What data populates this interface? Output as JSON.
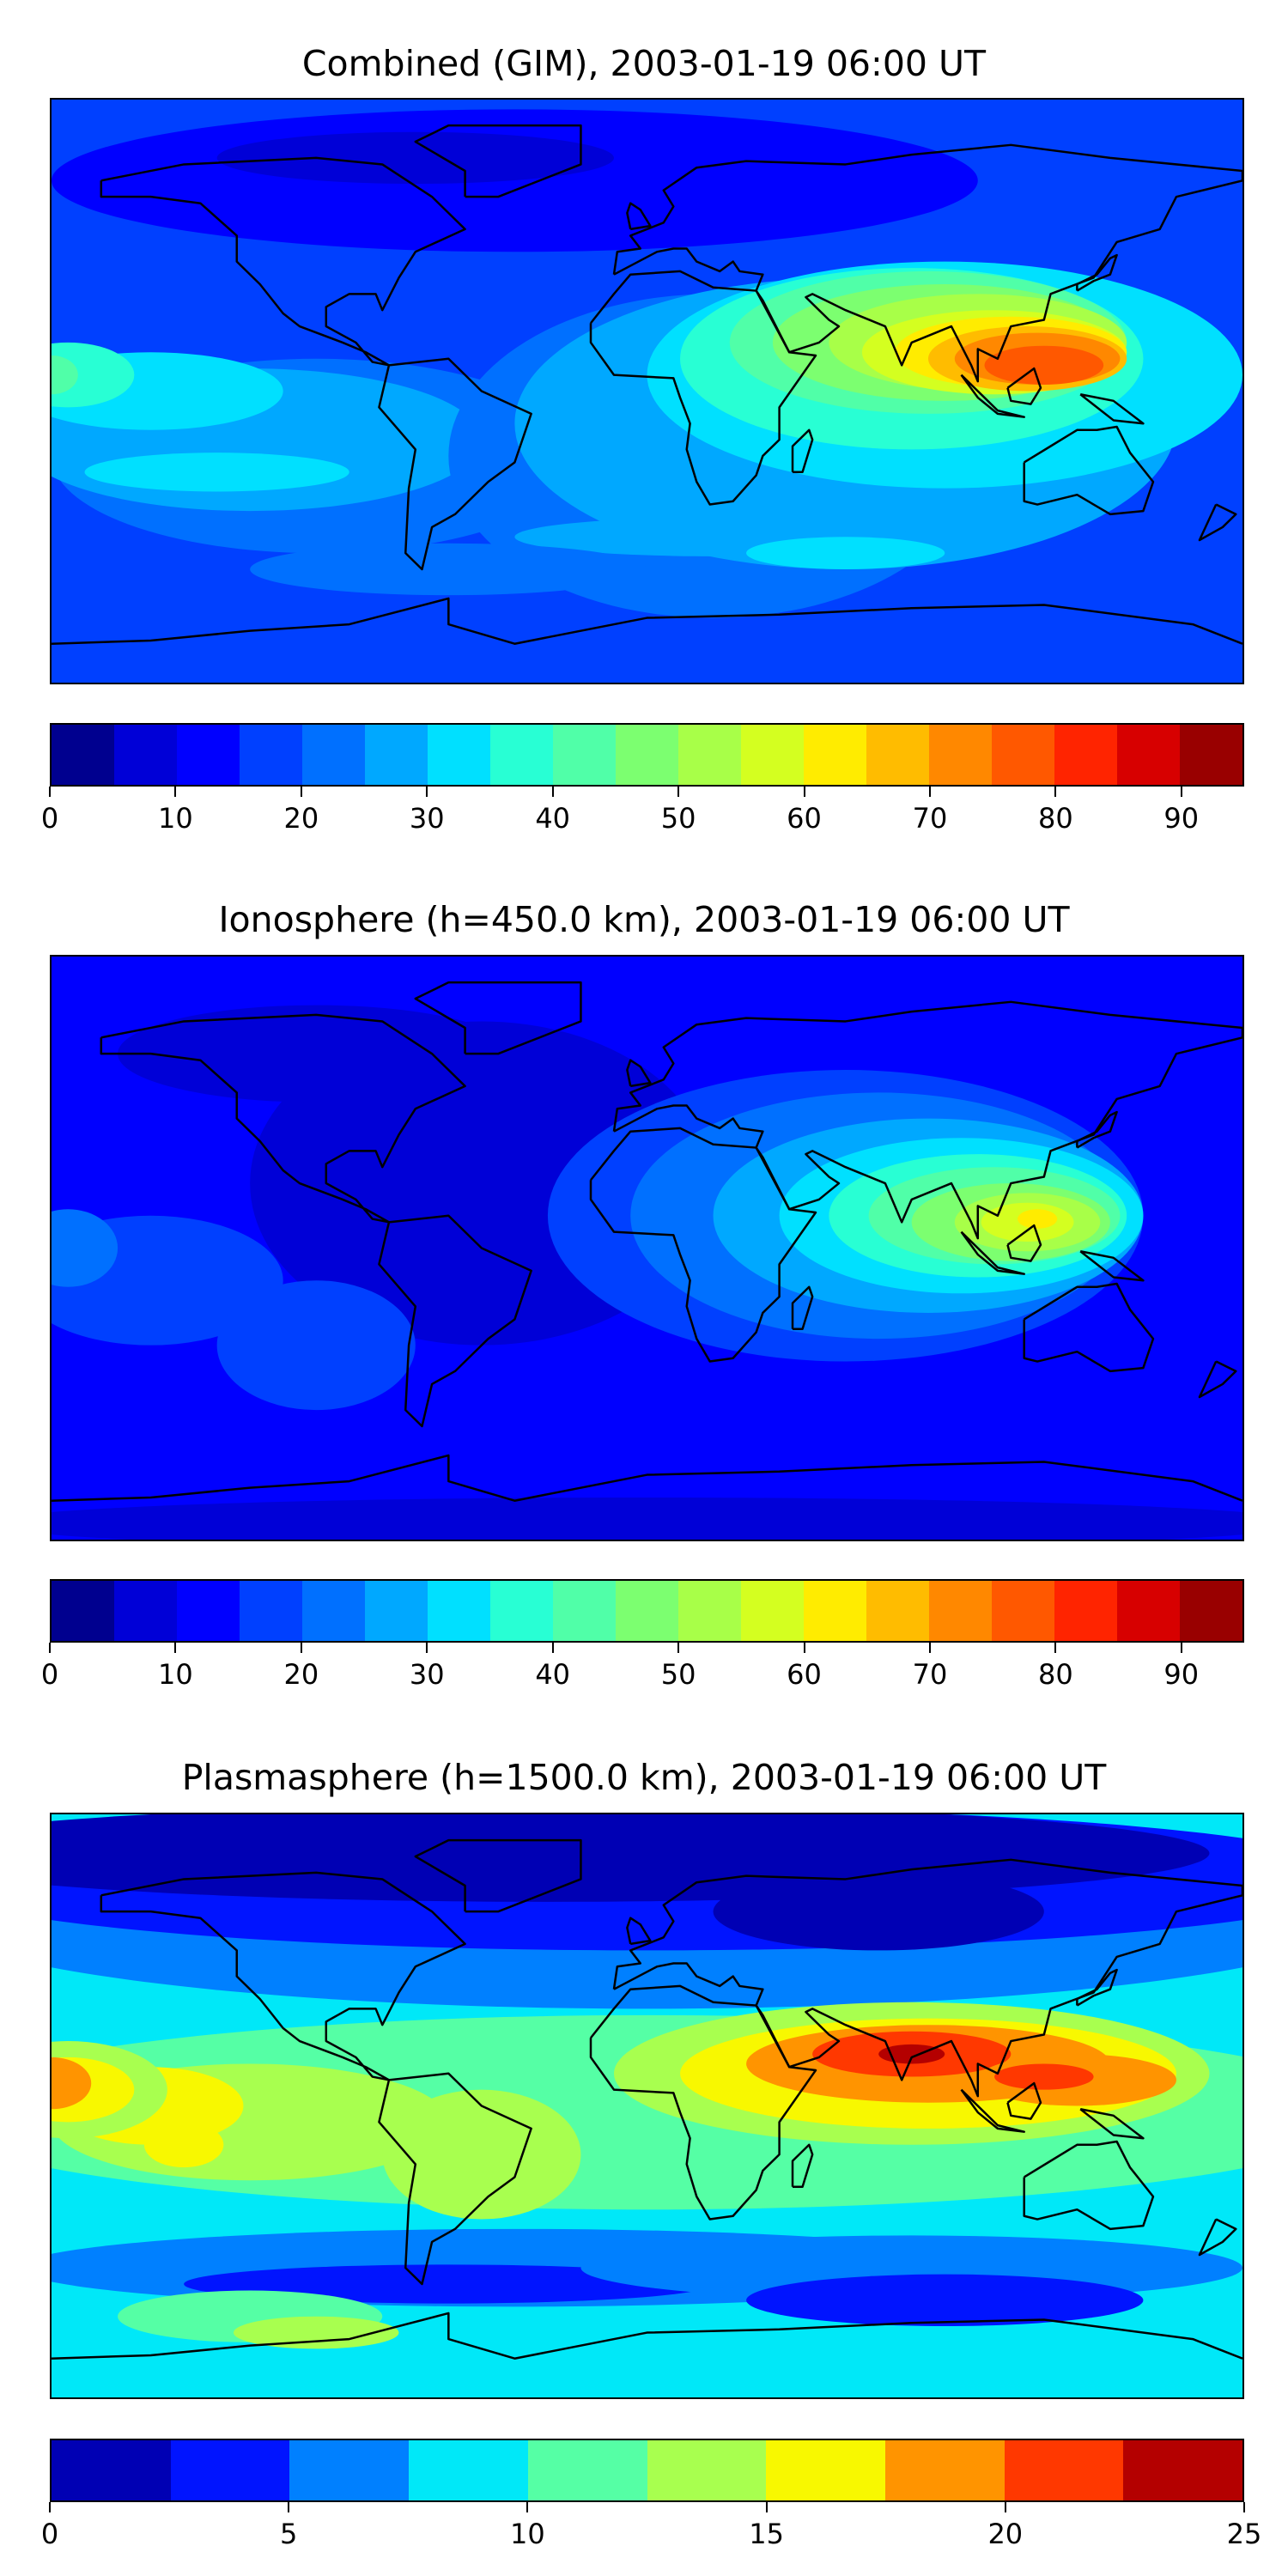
{
  "chart_data": [
    {
      "type": "heatmap",
      "title": "Combined (GIM), 2003-01-19 06:00 UT",
      "xlim": [
        -180,
        180
      ],
      "ylim": [
        -90,
        90
      ],
      "colorbar": {
        "levels": [
          0,
          5,
          10,
          15,
          20,
          25,
          30,
          35,
          40,
          45,
          50,
          55,
          60,
          65,
          70,
          75,
          80,
          85,
          90,
          95
        ],
        "ticks": [
          0,
          10,
          20,
          30,
          40,
          50,
          60,
          70,
          80,
          90
        ],
        "colors": [
          "#00008f",
          "#0000d7",
          "#0000ff",
          "#0040ff",
          "#0070ff",
          "#00a8ff",
          "#00e0ff",
          "#28ffd4",
          "#50ffa8",
          "#7cff70",
          "#a8ff48",
          "#d4ff20",
          "#ffec00",
          "#ffbc00",
          "#ff8800",
          "#ff5800",
          "#ff2400",
          "#d70000",
          "#990000"
        ],
        "location": "bottom"
      },
      "base_level": 3,
      "field_blobs_lon_lat": [
        [
          2,
          -40,
          65,
          140,
          22
        ],
        [
          1,
          -70,
          72,
          60,
          8
        ],
        [
          4,
          -100,
          -20,
          80,
          30
        ],
        [
          5,
          -120,
          -15,
          70,
          22
        ],
        [
          6,
          -150,
          0,
          40,
          12
        ],
        [
          7,
          -175,
          5,
          20,
          10
        ],
        [
          8,
          -180,
          5,
          8,
          6
        ],
        [
          4,
          20,
          -20,
          80,
          50
        ],
        [
          5,
          60,
          -10,
          100,
          45
        ],
        [
          6,
          90,
          5,
          90,
          35
        ],
        [
          7,
          80,
          10,
          70,
          28
        ],
        [
          8,
          85,
          15,
          60,
          22
        ],
        [
          9,
          90,
          15,
          52,
          18
        ],
        [
          10,
          100,
          15,
          45,
          15
        ],
        [
          11,
          105,
          12,
          40,
          13
        ],
        [
          12,
          110,
          12,
          35,
          11
        ],
        [
          13,
          115,
          10,
          30,
          10
        ],
        [
          14,
          118,
          10,
          25,
          8
        ],
        [
          15,
          120,
          8,
          18,
          6
        ],
        [
          5,
          20,
          -45,
          60,
          6
        ],
        [
          6,
          60,
          -50,
          30,
          5
        ],
        [
          4,
          -60,
          -55,
          60,
          8
        ],
        [
          6,
          -130,
          -25,
          40,
          6
        ]
      ]
    },
    {
      "type": "heatmap",
      "title": "Ionosphere  (h=450.0 km), 2003-01-19 06:00 UT",
      "xlim": [
        -180,
        180
      ],
      "ylim": [
        -90,
        90
      ],
      "colorbar": {
        "levels": [
          0,
          5,
          10,
          15,
          20,
          25,
          30,
          35,
          40,
          45,
          50,
          55,
          60,
          65,
          70,
          75,
          80,
          85,
          90,
          95
        ],
        "ticks": [
          0,
          10,
          20,
          30,
          40,
          50,
          60,
          70,
          80,
          90
        ],
        "colors": [
          "#00008f",
          "#0000d7",
          "#0000ff",
          "#0040ff",
          "#0070ff",
          "#00a8ff",
          "#00e0ff",
          "#28ffd4",
          "#50ffa8",
          "#7cff70",
          "#a8ff48",
          "#d4ff20",
          "#ffec00",
          "#ffbc00",
          "#ff8800",
          "#ff5800",
          "#ff2400",
          "#d70000",
          "#990000"
        ],
        "location": "bottom"
      },
      "base_level": 2,
      "field_blobs_lon_lat": [
        [
          1,
          -50,
          20,
          70,
          50
        ],
        [
          1,
          -100,
          60,
          60,
          15
        ],
        [
          3,
          60,
          10,
          90,
          45
        ],
        [
          4,
          70,
          10,
          75,
          38
        ],
        [
          5,
          85,
          10,
          65,
          30
        ],
        [
          6,
          95,
          10,
          55,
          24
        ],
        [
          7,
          100,
          10,
          45,
          19
        ],
        [
          8,
          105,
          10,
          38,
          15
        ],
        [
          9,
          110,
          8,
          30,
          12
        ],
        [
          10,
          115,
          8,
          22,
          9
        ],
        [
          11,
          115,
          8,
          14,
          6
        ],
        [
          12,
          118,
          9,
          6,
          3
        ],
        [
          3,
          -150,
          -10,
          40,
          20
        ],
        [
          4,
          -175,
          0,
          15,
          12
        ],
        [
          3,
          -100,
          -30,
          30,
          20
        ],
        [
          1,
          0,
          -85,
          200,
          8
        ]
      ]
    },
    {
      "type": "heatmap",
      "title": "Plasmasphere (h=1500.0 km), 2003-01-19 06:00 UT",
      "xlim": [
        -180,
        180
      ],
      "ylim": [
        -90,
        90
      ],
      "colorbar": {
        "levels": [
          0,
          2.5,
          5,
          7.5,
          10,
          12.5,
          15,
          17.5,
          20,
          22.5,
          25
        ],
        "ticks": [
          0,
          5,
          10,
          15,
          20,
          25
        ],
        "colors": [
          "#0000b4",
          "#0014ff",
          "#0080ff",
          "#00e8f8",
          "#55ffa5",
          "#a8ff4f",
          "#f8f800",
          "#ff9400",
          "#ff3800",
          "#b40000"
        ],
        "location": "bottom"
      },
      "base_level": 3,
      "field_blobs_lon_lat": [
        [
          2,
          0,
          60,
          220,
          30
        ],
        [
          1,
          0,
          70,
          220,
          22
        ],
        [
          0,
          -30,
          78,
          200,
          15
        ],
        [
          0,
          70,
          60,
          50,
          12
        ],
        [
          4,
          0,
          -2,
          220,
          30
        ],
        [
          5,
          -120,
          -5,
          60,
          18
        ],
        [
          6,
          -150,
          0,
          28,
          12
        ],
        [
          5,
          -175,
          5,
          30,
          15
        ],
        [
          6,
          -175,
          5,
          20,
          10
        ],
        [
          7,
          -180,
          7,
          12,
          8
        ],
        [
          6,
          -140,
          -12,
          12,
          7
        ],
        [
          5,
          -50,
          -15,
          30,
          20
        ],
        [
          5,
          80,
          10,
          90,
          22
        ],
        [
          6,
          85,
          10,
          75,
          17
        ],
        [
          7,
          85,
          13,
          55,
          12
        ],
        [
          8,
          80,
          16,
          30,
          7
        ],
        [
          9,
          80,
          16,
          10,
          3
        ],
        [
          7,
          130,
          8,
          30,
          8
        ],
        [
          8,
          120,
          9,
          15,
          4
        ],
        [
          2,
          -40,
          -50,
          150,
          12
        ],
        [
          1,
          -60,
          -55,
          80,
          6
        ],
        [
          2,
          80,
          -50,
          100,
          10
        ],
        [
          1,
          90,
          -60,
          60,
          8
        ],
        [
          4,
          -120,
          -65,
          40,
          8
        ],
        [
          5,
          -100,
          -70,
          25,
          5
        ]
      ]
    }
  ]
}
